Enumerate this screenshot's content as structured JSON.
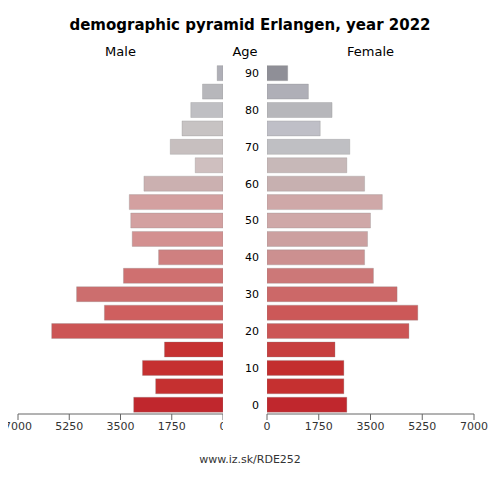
{
  "chart_data": {
    "type": "bar",
    "orientation": "horizontal",
    "title": "demographic pyramid Erlangen, year 2022",
    "y_label": "Age",
    "annotations": [
      "www.iz.sk/RDE252"
    ],
    "categories": [
      "0",
      null,
      "10",
      null,
      "20",
      null,
      "30",
      null,
      "40",
      null,
      "50",
      null,
      "60",
      null,
      "70",
      null,
      "80",
      null,
      "90"
    ],
    "series": [
      {
        "name": "Male",
        "values": [
          3050,
          2300,
          2750,
          2000,
          5850,
          4050,
          5000,
          3400,
          2200,
          3100,
          3150,
          3200,
          2700,
          950,
          1800,
          1400,
          1100,
          700,
          200
        ],
        "colors": [
          "#c0272d",
          "#c53030",
          "#c53030",
          "#c63232",
          "#cc5555",
          "#cf5f5f",
          "#cc6e6e",
          "#cf7070",
          "#cf8080",
          "#d39090",
          "#d3a0a0",
          "#d3a0a0",
          "#cbb0b0",
          "#cfbfbf",
          "#c7bfbf",
          "#c7c3c3",
          "#bfbfc3",
          "#b7b7bb",
          "#afafb7"
        ]
      },
      {
        "name": "Female",
        "values": [
          2700,
          2600,
          2600,
          2300,
          4800,
          5100,
          4400,
          3600,
          3300,
          3400,
          3500,
          3900,
          3300,
          2700,
          2800,
          1800,
          2200,
          1400,
          700
        ],
        "colors": [
          "#c0272d",
          "#c53030",
          "#c32e2e",
          "#c73f3f",
          "#cc5555",
          "#cc5858",
          "#cc6868",
          "#cc7878",
          "#cc9090",
          "#cca0a0",
          "#cfa8a8",
          "#cfa8a8",
          "#c7b0b0",
          "#c7b8b8",
          "#bfbfc3",
          "#bfbfc7",
          "#b7b7bb",
          "#afafb7",
          "#8f8f97"
        ]
      }
    ],
    "xlim": [
      0,
      7000
    ],
    "xticks": [
      0,
      1750,
      3500,
      5250,
      7000
    ],
    "grid": false
  }
}
